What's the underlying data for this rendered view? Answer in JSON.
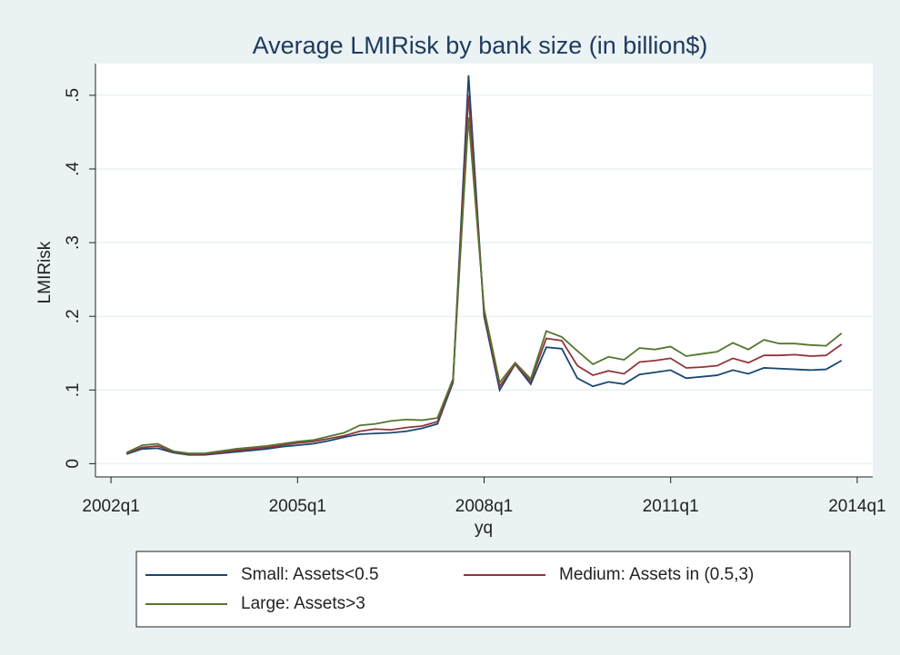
{
  "chart_data": {
    "type": "line",
    "title": "Average LMIRisk by bank size (in billion$)",
    "x_label": "yq",
    "y_label": "LMIRisk",
    "x": [
      169,
      170,
      171,
      172,
      173,
      174,
      175,
      176,
      177,
      178,
      179,
      180,
      181,
      182,
      183,
      184,
      185,
      186,
      187,
      188,
      189,
      190,
      191,
      192,
      193,
      194,
      195,
      196,
      197,
      198,
      199,
      200,
      201,
      202,
      203,
      204,
      205,
      206,
      207,
      208,
      209,
      210,
      211,
      212,
      213,
      214,
      215
    ],
    "series": [
      {
        "name": "Small: Assets<0.5",
        "color": "#1a476f",
        "values": [
          0.013,
          0.02,
          0.021,
          0.015,
          0.012,
          0.012,
          0.014,
          0.016,
          0.018,
          0.02,
          0.023,
          0.025,
          0.027,
          0.031,
          0.036,
          0.04,
          0.041,
          0.042,
          0.044,
          0.048,
          0.054,
          0.11,
          0.527,
          0.2,
          0.1,
          0.135,
          0.108,
          0.158,
          0.156,
          0.116,
          0.105,
          0.111,
          0.108,
          0.121,
          0.124,
          0.127,
          0.116,
          0.118,
          0.12,
          0.127,
          0.122,
          0.13,
          0.129,
          0.128,
          0.127,
          0.128,
          0.14
        ]
      },
      {
        "name": "Medium: Assets in (0.5,3)",
        "color": "#90353b",
        "values": [
          0.014,
          0.022,
          0.024,
          0.016,
          0.013,
          0.013,
          0.015,
          0.018,
          0.02,
          0.022,
          0.025,
          0.028,
          0.03,
          0.034,
          0.038,
          0.044,
          0.047,
          0.046,
          0.049,
          0.051,
          0.057,
          0.113,
          0.5,
          0.205,
          0.105,
          0.135,
          0.112,
          0.17,
          0.167,
          0.133,
          0.12,
          0.126,
          0.122,
          0.138,
          0.14,
          0.143,
          0.13,
          0.131,
          0.133,
          0.143,
          0.137,
          0.147,
          0.147,
          0.148,
          0.146,
          0.147,
          0.162
        ]
      },
      {
        "name": "Large: Assets>3",
        "color": "#55752f",
        "values": [
          0.015,
          0.025,
          0.027,
          0.017,
          0.014,
          0.014,
          0.017,
          0.02,
          0.022,
          0.024,
          0.027,
          0.03,
          0.032,
          0.037,
          0.042,
          0.052,
          0.054,
          0.058,
          0.06,
          0.059,
          0.062,
          0.115,
          0.47,
          0.21,
          0.11,
          0.137,
          0.115,
          0.18,
          0.172,
          0.153,
          0.135,
          0.145,
          0.141,
          0.157,
          0.155,
          0.159,
          0.146,
          0.149,
          0.152,
          0.164,
          0.155,
          0.168,
          0.163,
          0.163,
          0.161,
          0.16,
          0.177
        ]
      }
    ],
    "xlim": [
      167,
      217
    ],
    "xticks": [
      {
        "value": 168,
        "label": "2002q1"
      },
      {
        "value": 180,
        "label": "2005q1"
      },
      {
        "value": 192,
        "label": "2008q1"
      },
      {
        "value": 204,
        "label": "2011q1"
      },
      {
        "value": 216,
        "label": "2014q1"
      }
    ],
    "ylim": [
      -0.018,
      0.543
    ],
    "yticks": [
      0,
      {
        "value": 0.1,
        "label": ".1"
      },
      {
        "value": 0.2,
        "label": ".2"
      },
      {
        "value": 0.3,
        "label": ".3"
      },
      {
        "value": 0.4,
        "label": ".4"
      },
      {
        "value": 0.5,
        "label": ".5"
      }
    ],
    "grid": true,
    "legend": "bottom"
  }
}
